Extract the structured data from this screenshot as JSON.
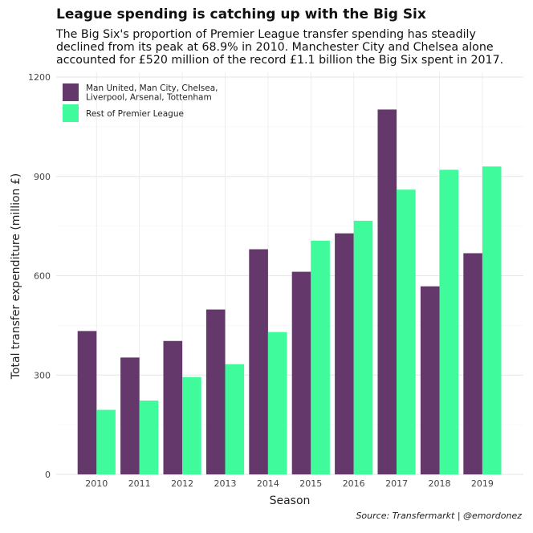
{
  "chart_data": {
    "type": "bar",
    "title": "League spending is catching up with the Big Six",
    "subtitle_lines": [
      "The Big Six's proportion of Premier League transfer spending has steadily",
      "declined from its peak at 68.9% in 2010. Manchester City and Chelsea alone",
      "accounted for £520 million of the record £1.1 billion the Big Six spent in 2017."
    ],
    "xlabel": "Season",
    "ylabel": "Total transfer expenditure (million £)",
    "caption": "Source: Transfermarkt | @emordonez",
    "categories": [
      "2010",
      "2011",
      "2012",
      "2013",
      "2014",
      "2015",
      "2016",
      "2017",
      "2018",
      "2019"
    ],
    "series": [
      {
        "name": "Man United, Man City, Chelsea,\nLiverpool, Arsenal, Tottenham",
        "color": "#64386a",
        "values": [
          433,
          353,
          403,
          498,
          680,
          612,
          728,
          1102,
          568,
          668
        ]
      },
      {
        "name": "Rest of Premier League",
        "color": "#3ffb9b",
        "values": [
          195,
          223,
          294,
          333,
          430,
          706,
          766,
          860,
          920,
          930
        ]
      }
    ],
    "yticks": [
      0,
      300,
      600,
      900,
      1200
    ],
    "ylim": [
      0,
      1200
    ],
    "grid": true,
    "legend_position": "top-left"
  }
}
